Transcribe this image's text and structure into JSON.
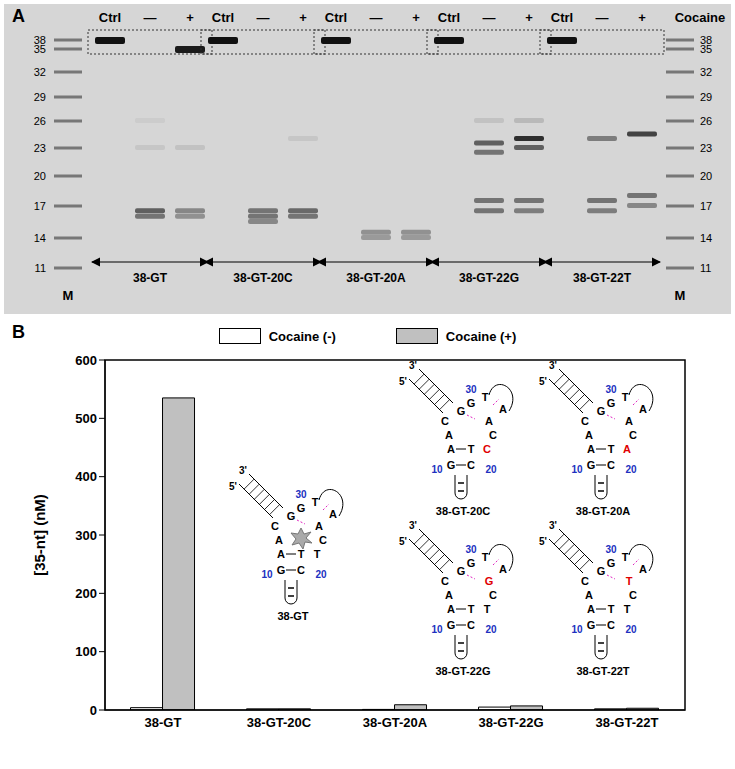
{
  "panel_labels": [
    "A",
    "B"
  ],
  "gel": {
    "marker_header": "Cocaine",
    "marker_lane_label": "M",
    "ladder_nt": [
      38,
      35,
      32,
      29,
      26,
      23,
      20,
      17,
      14,
      11
    ],
    "groups": [
      {
        "name": "38-GT",
        "lanes": [
          {
            "header": "Ctrl",
            "bands": [
              {
                "nt": 38,
                "intensity": 1
              }
            ]
          },
          {
            "header": "—",
            "bands": [
              {
                "nt": 16.5,
                "intensity": 0.6
              },
              {
                "nt": 16,
                "intensity": 0.5
              },
              {
                "nt": 23,
                "intensity": 0.08
              },
              {
                "nt": 26,
                "intensity": 0.05
              }
            ]
          },
          {
            "header": "+",
            "bands": [
              {
                "nt": 35,
                "intensity": 0.95
              },
              {
                "nt": 16.5,
                "intensity": 0.4
              },
              {
                "nt": 16,
                "intensity": 0.35
              },
              {
                "nt": 23,
                "intensity": 0.1
              }
            ]
          }
        ]
      },
      {
        "name": "38-GT-20C",
        "lanes": [
          {
            "header": "Ctrl",
            "bands": [
              {
                "nt": 38,
                "intensity": 1
              }
            ]
          },
          {
            "header": "—",
            "bands": [
              {
                "nt": 16.5,
                "intensity": 0.5
              },
              {
                "nt": 16,
                "intensity": 0.5
              },
              {
                "nt": 15.5,
                "intensity": 0.4
              }
            ]
          },
          {
            "header": "+",
            "bands": [
              {
                "nt": 16.5,
                "intensity": 0.55
              },
              {
                "nt": 16,
                "intensity": 0.5
              },
              {
                "nt": 24,
                "intensity": 0.08
              }
            ]
          }
        ]
      },
      {
        "name": "38-GT-20A",
        "lanes": [
          {
            "header": "Ctrl",
            "bands": [
              {
                "nt": 38,
                "intensity": 1
              }
            ]
          },
          {
            "header": "—",
            "bands": [
              {
                "nt": 14.5,
                "intensity": 0.35
              },
              {
                "nt": 14,
                "intensity": 0.3
              }
            ]
          },
          {
            "header": "+",
            "bands": [
              {
                "nt": 14.5,
                "intensity": 0.35
              },
              {
                "nt": 14,
                "intensity": 0.3
              }
            ]
          }
        ]
      },
      {
        "name": "38-GT-22G",
        "lanes": [
          {
            "header": "Ctrl",
            "bands": [
              {
                "nt": 38,
                "intensity": 1
              }
            ]
          },
          {
            "header": "—",
            "bands": [
              {
                "nt": 23.5,
                "intensity": 0.6
              },
              {
                "nt": 22.5,
                "intensity": 0.5
              },
              {
                "nt": 17.5,
                "intensity": 0.5
              },
              {
                "nt": 16.5,
                "intensity": 0.5
              },
              {
                "nt": 26,
                "intensity": 0.1
              }
            ]
          },
          {
            "header": "+",
            "bands": [
              {
                "nt": 24,
                "intensity": 0.85
              },
              {
                "nt": 23,
                "intensity": 0.6
              },
              {
                "nt": 17.5,
                "intensity": 0.5
              },
              {
                "nt": 16.5,
                "intensity": 0.45
              },
              {
                "nt": 26,
                "intensity": 0.15
              }
            ]
          }
        ]
      },
      {
        "name": "38-GT-22T",
        "lanes": [
          {
            "header": "Ctrl",
            "bands": [
              {
                "nt": 38,
                "intensity": 1
              }
            ]
          },
          {
            "header": "—",
            "bands": [
              {
                "nt": 24,
                "intensity": 0.45
              },
              {
                "nt": 17.5,
                "intensity": 0.5
              },
              {
                "nt": 16.5,
                "intensity": 0.45
              }
            ]
          },
          {
            "header": "+",
            "bands": [
              {
                "nt": 24.5,
                "intensity": 0.75
              },
              {
                "nt": 18,
                "intensity": 0.5
              },
              {
                "nt": 17,
                "intensity": 0.4
              }
            ]
          }
        ]
      }
    ]
  },
  "chart_data": {
    "type": "bar",
    "y_label": "[35-nt] (nM)",
    "categories": [
      "38-GT",
      "38-GT-20C",
      "38-GT-20A",
      "38-GT-22G",
      "38-GT-22T"
    ],
    "series": [
      {
        "name": "Cocaine (-)",
        "color": "#ffffff",
        "values": [
          4,
          2,
          1,
          5,
          2
        ]
      },
      {
        "name": "Cocaine (+)",
        "color": "#c0c0c0",
        "values": [
          535,
          2,
          9,
          7,
          3
        ]
      }
    ],
    "ylim": [
      0,
      600
    ],
    "yticks": [
      0,
      100,
      200,
      300,
      400,
      500,
      600
    ],
    "legend": "top",
    "grid": false
  },
  "structure_insets": {
    "ends": [
      "5'",
      "3'"
    ],
    "position_labels": [
      "10",
      "20",
      "30"
    ],
    "items": [
      {
        "name": "38-GT",
        "letters": [
          "C",
          "A",
          "A",
          "T",
          "G",
          "C",
          "T",
          "C",
          "A",
          "A",
          "T",
          "G",
          "G"
        ],
        "mutated": null,
        "bound": true
      },
      {
        "name": "38-GT-20C",
        "letters": [
          "C",
          "A",
          "A",
          "T",
          "G",
          "C",
          "C",
          "C",
          "A",
          "A",
          "T",
          "G",
          "G"
        ],
        "mutated": 6,
        "bound": false
      },
      {
        "name": "38-GT-20A",
        "letters": [
          "C",
          "A",
          "A",
          "T",
          "G",
          "C",
          "A",
          "C",
          "A",
          "A",
          "T",
          "G",
          "G"
        ],
        "mutated": 6,
        "bound": false
      },
      {
        "name": "38-GT-22G",
        "letters": [
          "C",
          "A",
          "A",
          "T",
          "G",
          "C",
          "T",
          "C",
          "G",
          "A",
          "T",
          "G",
          "G"
        ],
        "mutated": 8,
        "bound": false
      },
      {
        "name": "38-GT-22T",
        "letters": [
          "C",
          "A",
          "A",
          "T",
          "G",
          "C",
          "T",
          "C",
          "T",
          "A",
          "T",
          "G",
          "G"
        ],
        "mutated": 8,
        "bound": false
      }
    ]
  }
}
